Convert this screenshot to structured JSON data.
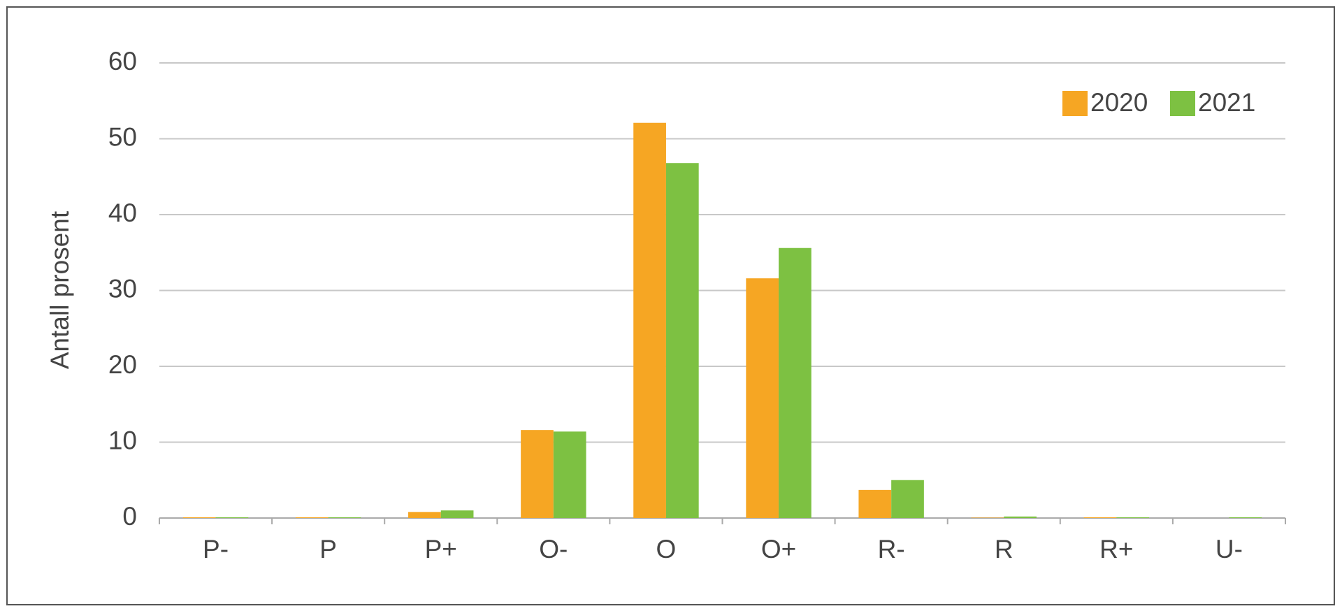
{
  "chart_data": {
    "type": "bar",
    "y_label": "Antall prosent",
    "categories": [
      "P-",
      "P",
      "P+",
      "O-",
      "O",
      "O+",
      "R-",
      "R",
      "R+",
      "U-"
    ],
    "series": [
      {
        "name": "2020",
        "color": "#f6a623",
        "values": [
          0.1,
          0.1,
          0.8,
          11.6,
          52.1,
          31.6,
          3.7,
          0.05,
          0.1,
          0
        ]
      },
      {
        "name": "2021",
        "color": "#7dc142",
        "values": [
          0.1,
          0.1,
          1.0,
          11.4,
          46.8,
          35.6,
          5.0,
          0.2,
          0.1,
          0.1
        ]
      }
    ],
    "ylim": [
      0,
      60
    ],
    "yticks": [
      0,
      10,
      20,
      30,
      40,
      50,
      60
    ],
    "grid": true,
    "legend": "top-right"
  }
}
